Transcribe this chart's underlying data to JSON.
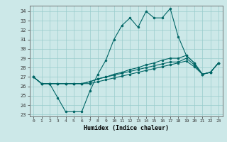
{
  "xlabel": "Humidex (Indice chaleur)",
  "bg_color": "#cce8e8",
  "grid_color": "#99cccc",
  "line_color": "#006666",
  "xlim": [
    -0.5,
    23.5
  ],
  "ylim": [
    22.8,
    34.6
  ],
  "yticks": [
    23,
    24,
    25,
    26,
    27,
    28,
    29,
    30,
    31,
    32,
    33,
    34
  ],
  "xticks": [
    0,
    1,
    2,
    3,
    4,
    5,
    6,
    7,
    8,
    9,
    10,
    11,
    12,
    13,
    14,
    15,
    16,
    17,
    18,
    19,
    20,
    21,
    22,
    23
  ],
  "lines": [
    [
      27.0,
      26.3,
      26.3,
      24.8,
      23.3,
      23.3,
      23.3,
      25.5,
      27.3,
      28.8,
      31.0,
      32.5,
      33.3,
      32.3,
      34.0,
      33.3,
      33.3,
      34.3,
      31.3,
      29.3,
      28.5,
      27.3,
      27.5,
      28.5
    ],
    [
      27.0,
      26.3,
      26.3,
      26.3,
      26.3,
      26.3,
      26.3,
      26.5,
      26.8,
      27.0,
      27.3,
      27.5,
      27.8,
      28.0,
      28.3,
      28.5,
      28.8,
      29.0,
      29.0,
      29.3,
      28.5,
      27.3,
      27.5,
      28.5
    ],
    [
      27.0,
      26.3,
      26.3,
      26.3,
      26.3,
      26.3,
      26.3,
      26.5,
      26.8,
      27.0,
      27.2,
      27.4,
      27.6,
      27.8,
      28.0,
      28.2,
      28.4,
      28.6,
      28.6,
      29.0,
      28.3,
      27.3,
      27.5,
      28.5
    ],
    [
      27.0,
      26.3,
      26.3,
      26.3,
      26.3,
      26.3,
      26.3,
      26.3,
      26.5,
      26.7,
      26.9,
      27.1,
      27.3,
      27.5,
      27.7,
      27.9,
      28.1,
      28.3,
      28.5,
      28.7,
      28.1,
      27.3,
      27.5,
      28.5
    ]
  ]
}
